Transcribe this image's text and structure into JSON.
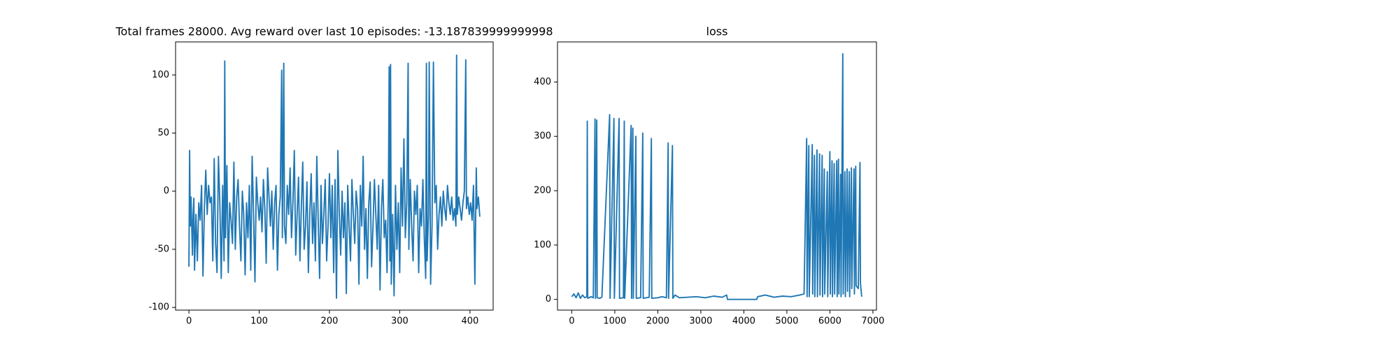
{
  "chart_data": [
    {
      "type": "line",
      "title": "Total frames 28000. Avg reward over last 10 episodes: -13.187839999999998",
      "color": "#1f77b4",
      "x": [
        0,
        1,
        2,
        3,
        5,
        6,
        7,
        8,
        10,
        12,
        14,
        16,
        18,
        20,
        22,
        24,
        26,
        28,
        30,
        32,
        34,
        36,
        38,
        40,
        42,
        44,
        46,
        48,
        50,
        51,
        52,
        54,
        56,
        58,
        60,
        62,
        64,
        66,
        68,
        70,
        72,
        74,
        76,
        78,
        80,
        82,
        84,
        86,
        88,
        90,
        92,
        94,
        96,
        98,
        100,
        102,
        104,
        106,
        108,
        110,
        112,
        114,
        116,
        118,
        120,
        122,
        124,
        126,
        128,
        130,
        132,
        133,
        135,
        136,
        138,
        140,
        142,
        144,
        146,
        148,
        150,
        152,
        154,
        156,
        158,
        160,
        162,
        164,
        166,
        168,
        170,
        172,
        174,
        176,
        178,
        180,
        182,
        184,
        186,
        188,
        190,
        192,
        194,
        196,
        198,
        200,
        202,
        204,
        206,
        208,
        210,
        212,
        214,
        216,
        218,
        220,
        222,
        224,
        226,
        228,
        230,
        232,
        234,
        236,
        238,
        240,
        242,
        244,
        246,
        248,
        250,
        252,
        254,
        256,
        258,
        260,
        262,
        264,
        266,
        268,
        270,
        272,
        274,
        276,
        278,
        280,
        282,
        284,
        285,
        286,
        287,
        288,
        290,
        292,
        294,
        296,
        298,
        300,
        302,
        304,
        306,
        308,
        310,
        312,
        313,
        315,
        317,
        319,
        321,
        323,
        325,
        327,
        329,
        331,
        333,
        335,
        337,
        338,
        339,
        341,
        342,
        344,
        346,
        348,
        350,
        352,
        354,
        356,
        358,
        360,
        362,
        364,
        366,
        368,
        370,
        372,
        374,
        376,
        378,
        380,
        381,
        382,
        384,
        386,
        388,
        390,
        392,
        394,
        395,
        397,
        399,
        401,
        403,
        405,
        407,
        409,
        410,
        412,
        414
      ],
      "values": [
        -65,
        35,
        -30,
        -5,
        -55,
        -20,
        -6,
        -68,
        -20,
        -60,
        -10,
        -25,
        5,
        -73,
        -15,
        18,
        -20,
        5,
        -10,
        -5,
        -60,
        28,
        -45,
        -70,
        30,
        -10,
        -75,
        5,
        -60,
        112,
        -40,
        22,
        -70,
        -10,
        -25,
        -45,
        25,
        -50,
        -5,
        10,
        -30,
        -60,
        0,
        -20,
        -72,
        -10,
        -40,
        5,
        -68,
        30,
        -20,
        -78,
        12,
        -10,
        -25,
        -5,
        -35,
        10,
        -15,
        -62,
        20,
        -5,
        -30,
        0,
        -50,
        -10,
        5,
        -68,
        -20,
        -5,
        104,
        -40,
        110,
        -30,
        -45,
        5,
        -20,
        20,
        -40,
        -10,
        35,
        -55,
        -20,
        12,
        -60,
        -15,
        25,
        -50,
        -30,
        8,
        -70,
        -20,
        15,
        -45,
        -10,
        -60,
        30,
        -25,
        -75,
        5,
        -45,
        -20,
        10,
        -60,
        -30,
        15,
        -40,
        5,
        -70,
        10,
        -92,
        35,
        -20,
        -55,
        0,
        -40,
        -10,
        -88,
        5,
        -30,
        -60,
        10,
        -20,
        -45,
        0,
        -15,
        -80,
        5,
        -30,
        30,
        -50,
        -15,
        -75,
        -10,
        8,
        -65,
        -30,
        10,
        -20,
        -50,
        5,
        -85,
        -15,
        10,
        -40,
        -25,
        -70,
        5,
        107,
        -60,
        109,
        -80,
        -20,
        -90,
        5,
        -50,
        -10,
        -70,
        20,
        -30,
        45,
        -40,
        -10,
        110,
        -50,
        10,
        -30,
        -60,
        0,
        -20,
        5,
        -70,
        -15,
        -30,
        10,
        -40,
        -75,
        110,
        -60,
        -20,
        111,
        -80,
        -30,
        111,
        -10,
        5,
        -50,
        -20,
        -5,
        -30,
        0,
        -15,
        -25,
        5,
        -10,
        -20,
        -5,
        -25,
        -15,
        -30,
        117,
        -20,
        -5,
        -15,
        -25,
        -10,
        0,
        113,
        -15,
        -5,
        -20,
        -10,
        -25,
        5,
        -80,
        20,
        -15,
        -5,
        -22
      ],
      "xlim": [
        -19,
        433
      ],
      "ylim": [
        -102.3,
        128.4
      ],
      "xticks": [
        0,
        100,
        200,
        300,
        400
      ],
      "yticks": [
        -100,
        -50,
        0,
        50,
        100
      ]
    },
    {
      "type": "line",
      "title": "loss",
      "color": "#1f77b4",
      "x": [
        0,
        50,
        100,
        150,
        200,
        250,
        300,
        350,
        360,
        370,
        450,
        500,
        540,
        550,
        580,
        590,
        650,
        700,
        880,
        890,
        980,
        990,
        1100,
        1110,
        1200,
        1220,
        1230,
        1380,
        1390,
        1420,
        1430,
        1490,
        1500,
        1600,
        1650,
        1660,
        1800,
        1850,
        1860,
        2000,
        2100,
        2200,
        2240,
        2250,
        2340,
        2350,
        2400,
        2500,
        2700,
        2900,
        3100,
        3300,
        3500,
        3600,
        3620,
        4300,
        4320,
        4500,
        4700,
        4900,
        5100,
        5300,
        5400,
        5460,
        5470,
        5510,
        5520,
        5590,
        5600,
        5640,
        5650,
        5700,
        5710,
        5760,
        5770,
        5820,
        5830,
        5870,
        5880,
        5940,
        5950,
        6000,
        6010,
        6050,
        6060,
        6100,
        6110,
        6160,
        6170,
        6200,
        6210,
        6250,
        6260,
        6300,
        6310,
        6350,
        6360,
        6400,
        6410,
        6450,
        6460,
        6500,
        6510,
        6560,
        6570,
        6600,
        6610,
        6660,
        6700,
        6710,
        6740
      ],
      "values": [
        5,
        10,
        3,
        12,
        2,
        8,
        3,
        5,
        328,
        2,
        5,
        3,
        332,
        2,
        330,
        3,
        2,
        4,
        340,
        2,
        333,
        2,
        333,
        2,
        3,
        328,
        2,
        320,
        2,
        315,
        2,
        300,
        2,
        3,
        306,
        2,
        4,
        296,
        2,
        3,
        5,
        3,
        288,
        2,
        283,
        2,
        8,
        3,
        4,
        5,
        3,
        6,
        4,
        8,
        0,
        0,
        5,
        8,
        4,
        6,
        5,
        8,
        10,
        296,
        5,
        283,
        5,
        285,
        10,
        265,
        5,
        275,
        5,
        268,
        8,
        265,
        5,
        240,
        10,
        235,
        5,
        272,
        10,
        255,
        5,
        250,
        10,
        255,
        5,
        258,
        10,
        230,
        5,
        452,
        10,
        235,
        5,
        240,
        15,
        235,
        5,
        242,
        20,
        240,
        10,
        245,
        25,
        20,
        252,
        30,
        5
      ],
      "xlim": [
        -332,
        7083
      ],
      "ylim": [
        -19.7,
        473.8
      ],
      "xticks": [
        0,
        1000,
        2000,
        3000,
        4000,
        5000,
        6000,
        7000
      ],
      "yticks": [
        0,
        100,
        200,
        300,
        400
      ]
    }
  ]
}
